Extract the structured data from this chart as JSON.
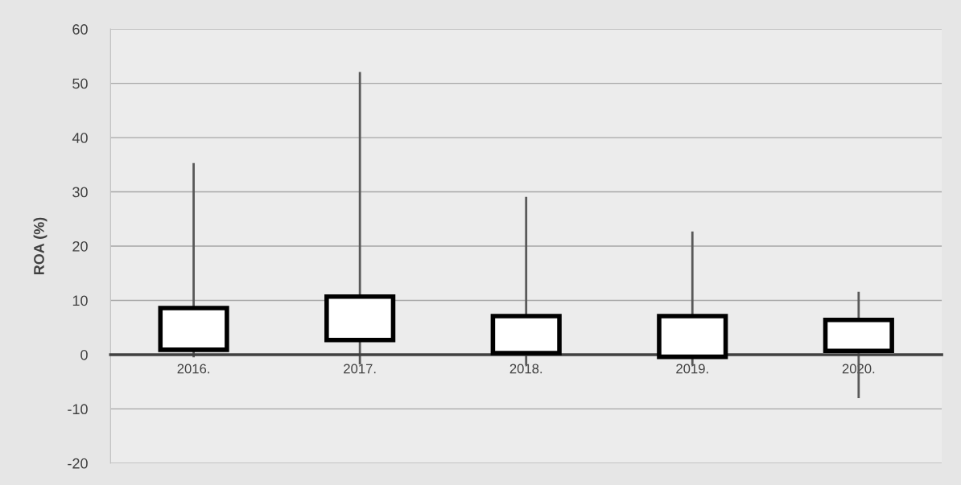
{
  "chart_data": {
    "type": "candlestick",
    "ylabel": "ROA (%)",
    "categories": [
      "2016.",
      "2017.",
      "2018.",
      "2019.",
      "2020."
    ],
    "ohlc": [
      [
        0.9,
        35.3,
        -0.5,
        8.6
      ],
      [
        2.7,
        52.1,
        -1.8,
        10.7
      ],
      [
        0.3,
        29.1,
        -2,
        7.1
      ],
      [
        -0.4,
        22.7,
        -2,
        7.1
      ],
      [
        0.7,
        11.6,
        -8,
        6.4
      ]
    ],
    "color": "#ffffff",
    "ylim": [
      -20,
      60
    ],
    "yticks": [
      -20,
      -10,
      0,
      10,
      20,
      30,
      40,
      50,
      60
    ],
    "grid": "y"
  }
}
